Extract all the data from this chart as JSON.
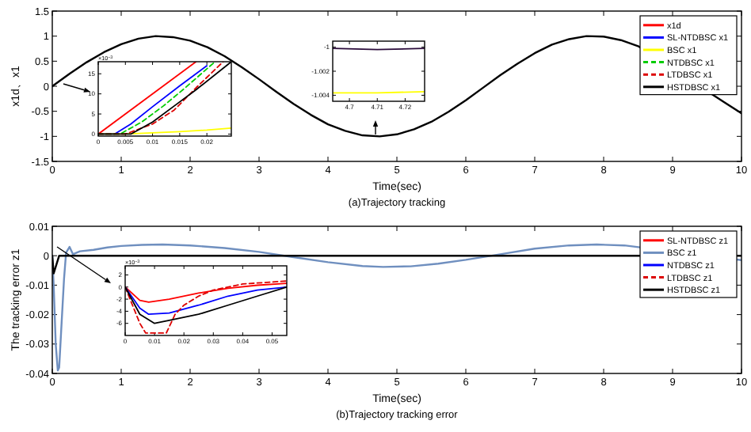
{
  "chart_data": [
    {
      "type": "line",
      "xlabel": "Time(sec)",
      "ylabel": "x1d、x1",
      "annotations": [
        "(a)Trajectory tracking"
      ],
      "xlim": [
        0,
        10
      ],
      "ylim": [
        -1.5,
        1.5
      ],
      "xticks": [
        0,
        1,
        2,
        3,
        4,
        5,
        6,
        7,
        8,
        9,
        10
      ],
      "yticks": [
        -1.5,
        -1,
        -0.5,
        0,
        0.5,
        1,
        1.5
      ],
      "legend": "top right",
      "series": [
        {
          "name": "x1d",
          "color": "#ff0000",
          "line_style": "solid"
        },
        {
          "name": "SL-NTDBSC x1",
          "color": "#0000ff",
          "line_style": "solid"
        },
        {
          "name": "BSC x1",
          "color": "#ffff00",
          "line_style": "solid"
        },
        {
          "name": "NTDBSC x1",
          "color": "#00cc00",
          "line_style": "dashed"
        },
        {
          "name": "LTDBSC x1",
          "color": "#dd0000",
          "line_style": "dashed"
        },
        {
          "name": "HSTDBSC x1",
          "color": "#000000",
          "line_style": "solid",
          "x": [
            0,
            0.25,
            0.5,
            0.75,
            1,
            1.25,
            1.5,
            1.75,
            2,
            2.25,
            2.5,
            2.75,
            3,
            3.25,
            3.5,
            3.75,
            4,
            4.25,
            4.5,
            4.75,
            5,
            5.25,
            5.5,
            5.75,
            6,
            6.25,
            6.5,
            6.75,
            7,
            7.25,
            7.5,
            7.75,
            8,
            8.25,
            8.5,
            9.75,
            10
          ],
          "values": [
            0,
            0.25,
            0.48,
            0.68,
            0.84,
            0.95,
            1.0,
            0.98,
            0.91,
            0.78,
            0.6,
            0.38,
            0.14,
            -0.11,
            -0.35,
            -0.57,
            -0.76,
            -0.89,
            -0.98,
            -1.0,
            -0.96,
            -0.86,
            -0.71,
            -0.51,
            -0.28,
            -0.03,
            0.22,
            0.45,
            0.66,
            0.83,
            0.94,
            1.0,
            0.99,
            0.92,
            0.8,
            -0.32,
            -0.54
          ]
        }
      ]
    },
    {
      "type": "line",
      "annotations": [
        "×10$^{−3}$"
      ],
      "xlim": [
        0,
        0.0245
      ],
      "ylim": [
        -0.5,
        18
      ],
      "xticks": [
        0,
        0.005,
        0.01,
        0.015,
        0.02
      ],
      "yticks": [
        0,
        5,
        10,
        15
      ],
      "series": [
        {
          "color": "#ff0000",
          "line_style": "solid",
          "x": [
            0,
            0.018
          ],
          "values": [
            0,
            18
          ]
        },
        {
          "color": "#0000ff",
          "line_style": "solid",
          "x": [
            0,
            0.003,
            0.006,
            0.01,
            0.015,
            0.02
          ],
          "values": [
            0,
            0,
            2.5,
            6.8,
            12,
            17
          ]
        },
        {
          "color": "#ffff00",
          "line_style": "solid",
          "x": [
            0,
            0.005,
            0.01,
            0.015,
            0.02,
            0.0245
          ],
          "values": [
            0,
            0,
            0.3,
            0.6,
            1,
            1.5
          ]
        },
        {
          "color": "#00cc00",
          "line_style": "dashed",
          "x": [
            0,
            0.004,
            0.008,
            0.012,
            0.016,
            0.0215
          ],
          "values": [
            0,
            0,
            3,
            7,
            11.5,
            18
          ]
        },
        {
          "color": "#dd0000",
          "line_style": "dashed",
          "x": [
            0,
            0.005,
            0.01,
            0.014,
            0.018,
            0.023
          ],
          "values": [
            0,
            0,
            2.5,
            6,
            11.5,
            18
          ]
        },
        {
          "color": "#000000",
          "line_style": "solid",
          "x": [
            0,
            0.006,
            0.01,
            0.014,
            0.018,
            0.0245
          ],
          "values": [
            0,
            0,
            3,
            7,
            11,
            18
          ]
        }
      ]
    },
    {
      "type": "line",
      "xlim": [
        4.694,
        4.727
      ],
      "ylim": [
        -1.0045,
        -0.9995
      ],
      "xticks": [
        4.7,
        4.71,
        4.72
      ],
      "yticks": [
        -1,
        -1.002,
        -1.004
      ],
      "series": [
        {
          "color": "#2a0a3a",
          "line_style": "solid",
          "x": [
            4.694,
            4.71,
            4.727
          ],
          "values": [
            -1.0001,
            -1.0002,
            -1.0001
          ]
        },
        {
          "color": "#ffff00",
          "line_style": "solid",
          "x": [
            4.694,
            4.71,
            4.727
          ],
          "values": [
            -1.0038,
            -1.0038,
            -1.0037
          ]
        }
      ]
    },
    {
      "type": "line",
      "xlabel": "Time(sec)",
      "ylabel": "The tracking error z1",
      "annotations": [
        "(b)Trajectory tracking error"
      ],
      "xlim": [
        0,
        10
      ],
      "ylim": [
        -0.04,
        0.01
      ],
      "xticks": [
        0,
        1,
        2,
        3,
        4,
        5,
        6,
        7,
        8,
        9,
        10
      ],
      "yticks": [
        -0.04,
        -0.03,
        -0.02,
        -0.01,
        0,
        0.01
      ],
      "legend": "top right",
      "series": [
        {
          "name": "SL-NTDBSC z1",
          "color": "#ff0000",
          "line_style": "solid"
        },
        {
          "name": "BSC z1",
          "color": "#6f8fbf",
          "line_style": "solid",
          "x": [
            0,
            0.02,
            0.05,
            0.08,
            0.1,
            0.13,
            0.17,
            0.2,
            0.25,
            0.3,
            0.4,
            0.6,
            0.8,
            1,
            1.3,
            1.6,
            2,
            2.5,
            3,
            3.5,
            4,
            4.5,
            4.8,
            5.2,
            5.6,
            6,
            6.5,
            7,
            7.5,
            7.9,
            8.3,
            10
          ],
          "values": [
            0,
            -0.01,
            -0.03,
            -0.039,
            -0.038,
            -0.025,
            -0.008,
            0.001,
            0.003,
            0.0005,
            0.0015,
            0.002,
            0.0028,
            0.0033,
            0.0037,
            0.0038,
            0.0035,
            0.0026,
            0.0013,
            -0.0005,
            -0.0022,
            -0.0035,
            -0.0038,
            -0.0036,
            -0.0027,
            -0.0014,
            0.0005,
            0.0024,
            0.0035,
            0.0038,
            0.0035,
            -0.0015
          ]
        },
        {
          "name": "NTDBSC z1",
          "color": "#0000ff",
          "line_style": "solid"
        },
        {
          "name": "LTDBSC z1",
          "color": "#dd0000",
          "line_style": "dashed"
        },
        {
          "name": "HSTDBSC z1",
          "color": "#000000",
          "line_style": "solid",
          "x": [
            0,
            0.02,
            0.1,
            10
          ],
          "values": [
            0,
            -0.006,
            0,
            0
          ]
        }
      ]
    },
    {
      "type": "line",
      "annotations": [
        "×10$^{−3}$"
      ],
      "xlim": [
        0,
        0.055
      ],
      "ylim": [
        -8,
        3.5
      ],
      "xticks": [
        0,
        0.01,
        0.02,
        0.03,
        0.04,
        0.05
      ],
      "yticks": [
        -6,
        -4,
        -2,
        0,
        2
      ],
      "series": [
        {
          "color": "#ff0000",
          "line_style": "solid",
          "x": [
            0,
            0.005,
            0.008,
            0.015,
            0.025,
            0.035,
            0.045,
            0.055
          ],
          "values": [
            0,
            -2.2,
            -2.5,
            -2,
            -1,
            -0.2,
            0.3,
            0.6
          ]
        },
        {
          "color": "#0000ff",
          "line_style": "solid",
          "x": [
            0,
            0.005,
            0.008,
            0.015,
            0.025,
            0.035,
            0.045,
            0.055
          ],
          "values": [
            0,
            -3.5,
            -4.5,
            -4.3,
            -3,
            -1.5,
            -0.5,
            0
          ]
        },
        {
          "color": "#dd0000",
          "line_style": "dashed",
          "x": [
            0,
            0.005,
            0.007,
            0.014,
            0.017,
            0.02,
            0.025,
            0.03,
            0.04,
            0.055
          ],
          "values": [
            0,
            -6,
            -7.6,
            -7.6,
            -4.5,
            -3,
            -1.5,
            -0.5,
            0.5,
            1
          ]
        },
        {
          "color": "#000000",
          "line_style": "solid",
          "x": [
            0,
            0.005,
            0.01,
            0.015,
            0.025,
            0.035,
            0.045,
            0.055
          ],
          "values": [
            0,
            -4.5,
            -6,
            -5.5,
            -4.5,
            -3,
            -1.5,
            0
          ]
        }
      ]
    }
  ]
}
